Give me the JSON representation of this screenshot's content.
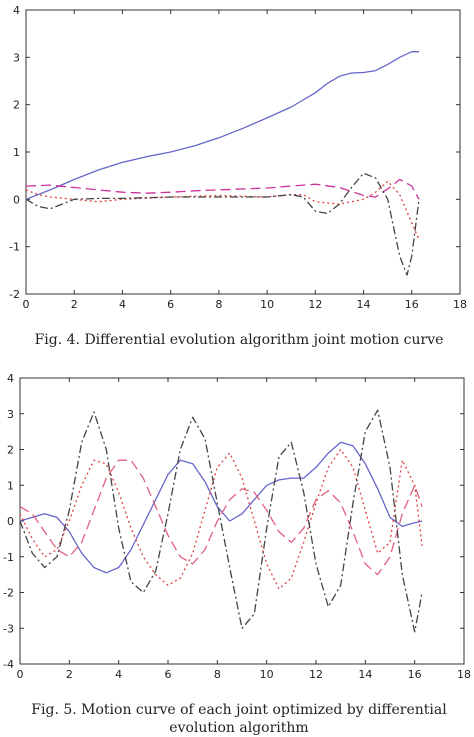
{
  "figures": [
    {
      "caption": "Fig. 4.   Differential evolution algorithm joint motion curve"
    },
    {
      "caption": "Fig. 5.   Motion curve of each joint optimized by differential evolution algorithm"
    }
  ],
  "chart_data": [
    {
      "type": "line",
      "title": "",
      "xlabel": "",
      "ylabel": "",
      "xlim": [
        0,
        18
      ],
      "ylim": [
        -2,
        4
      ],
      "xticks": [
        0,
        2,
        4,
        6,
        8,
        10,
        12,
        14,
        16,
        18
      ],
      "yticks": [
        -2,
        -1,
        0,
        1,
        2,
        3,
        4
      ],
      "grid": false,
      "series": [
        {
          "color": "#6666cc",
          "style": "solid",
          "x": [
            0,
            1,
            2,
            3,
            4,
            5,
            6,
            7,
            8,
            9,
            10,
            11,
            12,
            12.5,
            13,
            13.5,
            14,
            14.5,
            15,
            15.5,
            16,
            16.3
          ],
          "y": [
            0,
            0.2,
            0.42,
            0.62,
            0.78,
            0.9,
            1.0,
            1.13,
            1.3,
            1.5,
            1.72,
            1.95,
            2.25,
            2.45,
            2.6,
            2.67,
            2.68,
            2.72,
            2.85,
            3.0,
            3.12,
            3.12
          ]
        },
        {
          "color": "#cc3399",
          "style": "dash",
          "x": [
            0,
            1,
            2,
            3,
            4,
            5,
            6,
            7,
            8,
            9,
            10,
            11,
            12,
            13,
            14,
            14.5,
            15,
            15.5,
            16,
            16.3
          ],
          "y": [
            0.28,
            0.3,
            0.25,
            0.2,
            0.15,
            0.13,
            0.15,
            0.18,
            0.2,
            0.22,
            0.24,
            0.28,
            0.32,
            0.25,
            0.08,
            0.05,
            0.22,
            0.42,
            0.28,
            0.0
          ]
        },
        {
          "color": "#e04040",
          "style": "dot",
          "x": [
            0,
            0.5,
            1,
            2,
            3,
            4,
            6,
            8,
            10,
            11,
            11.5,
            12,
            13,
            14,
            14.5,
            15,
            15.5,
            16,
            16.3
          ],
          "y": [
            0.2,
            0.1,
            0.05,
            0.0,
            -0.05,
            0.0,
            0.05,
            0.08,
            0.05,
            0.1,
            0.1,
            -0.05,
            -0.1,
            0.0,
            0.15,
            0.38,
            0.1,
            -0.5,
            -0.85
          ]
        },
        {
          "color": "#444444",
          "style": "dashdot",
          "x": [
            0,
            0.5,
            1,
            1.5,
            2,
            3,
            4,
            6,
            8,
            10,
            11,
            11.5,
            12,
            12.5,
            13,
            13.5,
            14,
            14.5,
            15,
            15.5,
            15.8,
            16,
            16.3
          ],
          "y": [
            0.0,
            -0.15,
            -0.2,
            -0.1,
            0.0,
            0.02,
            0.02,
            0.05,
            0.05,
            0.05,
            0.1,
            0.05,
            -0.25,
            -0.3,
            -0.1,
            0.25,
            0.55,
            0.45,
            0.0,
            -1.2,
            -1.6,
            -1.2,
            0.0
          ]
        }
      ]
    },
    {
      "type": "line",
      "title": "",
      "xlabel": "",
      "ylabel": "",
      "xlim": [
        0,
        18
      ],
      "ylim": [
        -4,
        4
      ],
      "xticks": [
        0,
        2,
        4,
        6,
        8,
        10,
        12,
        14,
        16,
        18
      ],
      "yticks": [
        -4,
        -3,
        -2,
        -1,
        0,
        1,
        2,
        3,
        4
      ],
      "grid": false,
      "series": [
        {
          "color": "#6666cc",
          "style": "solid",
          "x": [
            0,
            0.5,
            1,
            1.5,
            2,
            2.5,
            3,
            3.5,
            4,
            4.5,
            5,
            5.5,
            6,
            6.5,
            7,
            7.5,
            8,
            8.5,
            9,
            9.5,
            10,
            10.5,
            11,
            11.5,
            12,
            12.5,
            13,
            13.5,
            14,
            14.5,
            15,
            15.5,
            16,
            16.3
          ],
          "y": [
            0,
            0.1,
            0.2,
            0.1,
            -0.3,
            -0.9,
            -1.3,
            -1.45,
            -1.3,
            -0.8,
            -0.1,
            0.6,
            1.3,
            1.7,
            1.6,
            1.1,
            0.4,
            0.0,
            0.2,
            0.6,
            1.0,
            1.15,
            1.2,
            1.2,
            1.5,
            1.9,
            2.2,
            2.1,
            1.6,
            0.9,
            0.1,
            -0.15,
            -0.05,
            0.0
          ]
        },
        {
          "color": "#e06080",
          "style": "dash",
          "x": [
            0,
            0.5,
            1,
            1.5,
            2,
            2.5,
            3,
            3.5,
            4,
            4.5,
            5,
            5.5,
            6,
            6.5,
            7,
            7.5,
            8,
            8.5,
            9,
            9.5,
            10,
            10.5,
            11,
            11.5,
            12,
            12.5,
            13,
            13.5,
            14,
            14.5,
            15,
            15.5,
            16,
            16.3
          ],
          "y": [
            0.4,
            0.2,
            -0.3,
            -0.8,
            -1.0,
            -0.6,
            0.3,
            1.2,
            1.7,
            1.7,
            1.2,
            0.4,
            -0.4,
            -1.0,
            -1.2,
            -0.8,
            0.0,
            0.6,
            0.9,
            0.8,
            0.3,
            -0.3,
            -0.6,
            -0.2,
            0.6,
            0.85,
            0.5,
            -0.3,
            -1.2,
            -1.5,
            -1.0,
            0.2,
            1.0,
            0.4
          ]
        },
        {
          "color": "#e04040",
          "style": "dot",
          "x": [
            0,
            0.5,
            1,
            1.5,
            2,
            2.5,
            3,
            3.5,
            4,
            4.5,
            5,
            5.5,
            6,
            6.5,
            7,
            7.5,
            8,
            8.5,
            9,
            9.5,
            10,
            10.5,
            11,
            11.5,
            12,
            12.5,
            13,
            13.5,
            14,
            14.5,
            15,
            15.5,
            16,
            16.3
          ],
          "y": [
            0.2,
            -0.5,
            -1.0,
            -0.8,
            0.0,
            1.0,
            1.7,
            1.6,
            0.8,
            -0.2,
            -1.0,
            -1.5,
            -1.8,
            -1.6,
            -0.9,
            0.3,
            1.5,
            1.9,
            1.2,
            0.0,
            -1.2,
            -1.9,
            -1.6,
            -0.6,
            0.5,
            1.5,
            2.0,
            1.5,
            0.3,
            -0.9,
            -0.6,
            1.7,
            1.0,
            -0.7
          ]
        },
        {
          "color": "#444444",
          "style": "dashdot",
          "x": [
            0,
            0.5,
            1,
            1.5,
            2,
            2.5,
            3,
            3.5,
            4,
            4.5,
            5,
            5.5,
            6,
            6.5,
            7,
            7.5,
            8,
            8.5,
            9,
            9.5,
            10,
            10.5,
            11,
            11.5,
            12,
            12.5,
            13,
            13.5,
            14,
            14.5,
            15,
            15.5,
            16,
            16.3
          ],
          "y": [
            0,
            -0.9,
            -1.3,
            -1.0,
            0.3,
            2.2,
            3.05,
            2.0,
            -0.2,
            -1.7,
            -2.0,
            -1.4,
            0.2,
            2.0,
            2.9,
            2.3,
            0.5,
            -1.3,
            -3.0,
            -2.6,
            -0.2,
            1.8,
            2.2,
            0.8,
            -1.2,
            -2.4,
            -1.8,
            0.5,
            2.5,
            3.1,
            1.5,
            -1.5,
            -3.1,
            -2.0
          ]
        }
      ]
    }
  ]
}
